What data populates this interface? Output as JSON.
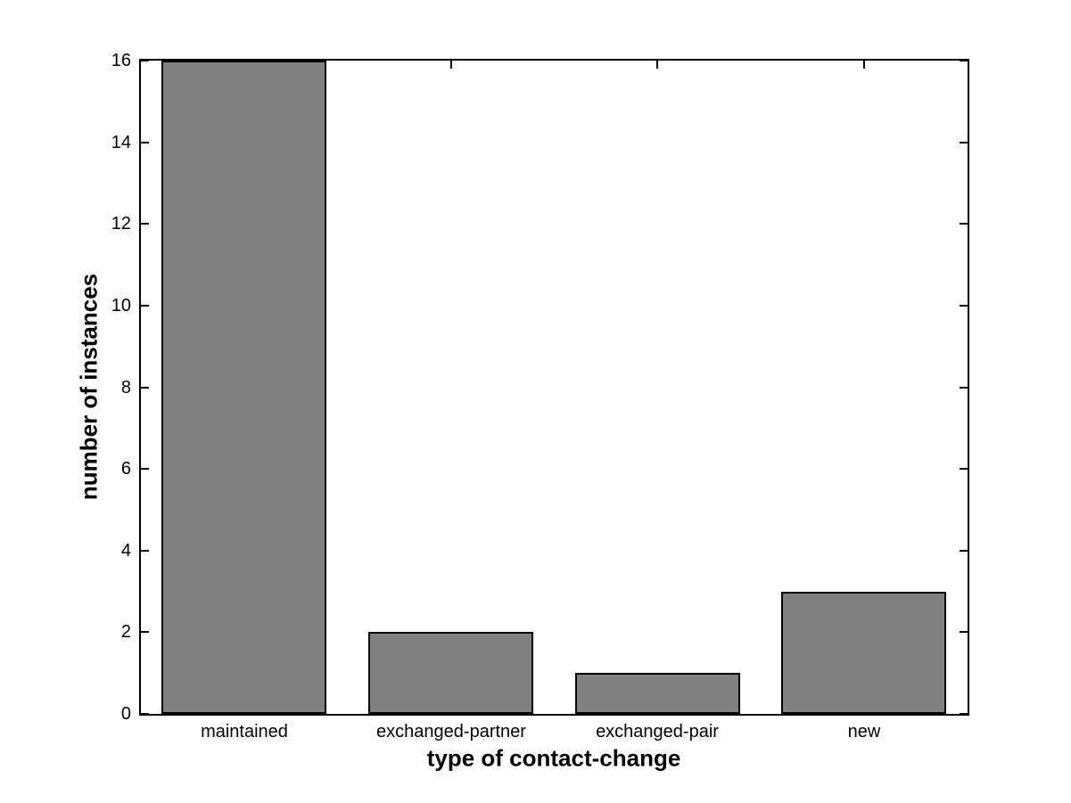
{
  "chart_data": {
    "type": "bar",
    "title": "",
    "categories": [
      "maintained",
      "exchanged-partner",
      "exchanged-pair",
      "new"
    ],
    "values": [
      16,
      2,
      1,
      3
    ],
    "xlabel": "type of contact-change",
    "ylabel": "number of instances",
    "ylim": [
      0,
      16
    ],
    "yticks": [
      0,
      2,
      4,
      6,
      8,
      10,
      12,
      14,
      16
    ],
    "bar_width_fraction": 0.8,
    "grid": false,
    "legend": null,
    "colors": {
      "bar_fill": "#808080",
      "bar_edge": "#000000",
      "axis": "#000000",
      "background": "#ffffff",
      "text": "#000000"
    }
  }
}
